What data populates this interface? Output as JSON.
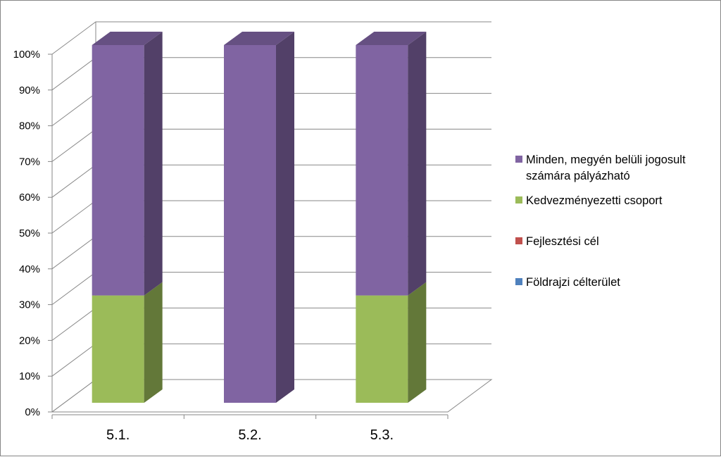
{
  "chart_data": {
    "type": "bar",
    "stacked": true,
    "three_d": true,
    "percent_stacked": true,
    "categories": [
      "5.1.",
      "5.2.",
      "5.3."
    ],
    "series": [
      {
        "name": "Földrajzi célterület",
        "values": [
          0,
          0,
          0
        ]
      },
      {
        "name": "Fejlesztési cél",
        "values": [
          0,
          0,
          0
        ]
      },
      {
        "name": "Kedvezményezetti csoport",
        "values": [
          30,
          0,
          30
        ]
      },
      {
        "name": "Minden, megyén belüli jogosult számára pályázható",
        "values": [
          70,
          100,
          70
        ]
      }
    ],
    "y_ticks": [
      "0%",
      "10%",
      "20%",
      "30%",
      "40%",
      "50%",
      "60%",
      "70%",
      "80%",
      "90%",
      "100%"
    ],
    "ylim": [
      0,
      100
    ],
    "grid": true,
    "legend_position": "right",
    "legend_order": [
      "Minden, megyén belüli jogosult számára pályázható",
      "Kedvezményezetti csoport",
      "Fejlesztési cél",
      "Földrajzi célterület"
    ],
    "legend_lines": [
      [
        "Minden, megyén belüli jogosult",
        "számára pályázható"
      ],
      [
        "Kedvezményezetti csoport"
      ],
      [
        "Fejlesztési cél"
      ],
      [
        "Földrajzi célterület"
      ]
    ],
    "colors": {
      "Földrajzi célterület": "#4F81BD",
      "Fejlesztési cél": "#C0504D",
      "Kedvezményezetti csoport": "#9BBB59",
      "Minden, megyén belüli jogosult számára pályázható": "#8064A2"
    }
  }
}
